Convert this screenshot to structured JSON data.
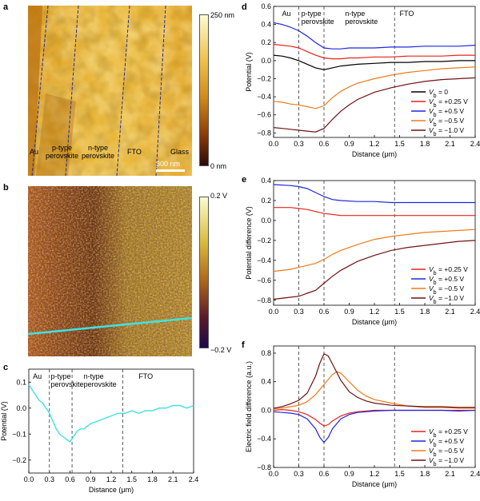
{
  "panels": {
    "a": {
      "letter": "a",
      "colorbar_max": "250 nm",
      "colorbar_min": "0 nm",
      "region_labels": [
        "Au",
        "p-type\nperovskite",
        "n-type\nperovskite",
        "FTO",
        "Glass"
      ],
      "scalebar": "300 nm"
    },
    "b": {
      "letter": "b",
      "colorbar_max": "0.2 V",
      "colorbar_min": "−0.2 V"
    },
    "c": {
      "letter": "c"
    },
    "d": {
      "letter": "d"
    },
    "e": {
      "letter": "e"
    },
    "f": {
      "letter": "f"
    }
  },
  "colors": {
    "cyan": "#3ee3e3",
    "black": "#000000",
    "red": "#e8231f",
    "blue": "#1f26e0",
    "orange": "#f07a1a",
    "darkred": "#6e1212"
  },
  "chart_data": [
    {
      "id": "c",
      "type": "line",
      "ylabel": "Potential (V)",
      "xlabel": "Distance (μm)",
      "xlim": [
        0,
        2.4
      ],
      "ylim": [
        -0.25,
        0.15
      ],
      "xticks": [
        0.0,
        0.3,
        0.6,
        0.9,
        1.2,
        1.5,
        1.8,
        2.1,
        2.4
      ],
      "xticklabels": [
        "0.0",
        "0.3",
        "0.6",
        "0.9",
        "1.2",
        "1.5",
        "1.8",
        "2.1",
        "2.4"
      ],
      "yticks": [
        0.1,
        0.0,
        -0.1,
        -0.2
      ],
      "yticklabels": [
        "0.1",
        "0.0",
        "−0.1",
        "−0.2"
      ],
      "vlines": [
        0.3,
        0.63,
        1.37
      ],
      "region_labels": [
        {
          "text": "Au",
          "x": 0.06
        },
        {
          "text": "p-type\nperovskite",
          "x": 0.32
        },
        {
          "text": "n-type\nperovskite",
          "x": 0.8
        },
        {
          "text": "FTO",
          "x": 1.6
        }
      ],
      "series": [
        {
          "color": "cyan",
          "x": [
            0,
            0.05,
            0.1,
            0.15,
            0.2,
            0.25,
            0.3,
            0.35,
            0.4,
            0.45,
            0.5,
            0.55,
            0.6,
            0.65,
            0.7,
            0.75,
            0.8,
            0.9,
            1.0,
            1.1,
            1.2,
            1.3,
            1.4,
            1.5,
            1.6,
            1.7,
            1.8,
            1.9,
            2.0,
            2.1,
            2.2,
            2.3,
            2.4
          ],
          "y": [
            0.09,
            0.07,
            0.05,
            0.03,
            0.02,
            0.0,
            -0.02,
            -0.05,
            -0.08,
            -0.1,
            -0.11,
            -0.12,
            -0.13,
            -0.11,
            -0.09,
            -0.08,
            -0.08,
            -0.06,
            -0.05,
            -0.04,
            -0.03,
            -0.02,
            -0.02,
            -0.01,
            -0.02,
            -0.01,
            -0.01,
            0.0,
            0.0,
            0.01,
            0.01,
            0.0,
            0.01
          ]
        }
      ]
    },
    {
      "id": "d",
      "type": "line",
      "ylabel": "Potential (V)",
      "xlabel": "Distance (μm)",
      "xlim": [
        0,
        2.4
      ],
      "ylim": [
        -0.85,
        0.6
      ],
      "xticks": [
        0.0,
        0.3,
        0.6,
        0.9,
        1.2,
        1.5,
        1.8,
        2.1,
        2.4
      ],
      "xticklabels": [
        "0.0",
        "0.3",
        "0.6",
        "0.9",
        "1.2",
        "1.5",
        "1.8",
        "2.1",
        "2.4"
      ],
      "yticks": [
        0.6,
        0.4,
        0.2,
        0.0,
        -0.2,
        -0.4,
        -0.6,
        -0.8
      ],
      "yticklabels": [
        "0.6",
        "0.4",
        "0.2",
        "0.0",
        "−0.2",
        "−0.4",
        "−0.6",
        "−0.8"
      ],
      "vlines": [
        0.3,
        0.6,
        1.44
      ],
      "region_labels": [
        {
          "text": "Au",
          "x": 0.1
        },
        {
          "text": "p-type\nperovskite",
          "x": 0.33
        },
        {
          "text": "n-type\nperovskite",
          "x": 0.85
        },
        {
          "text": "FTO",
          "x": 1.5
        }
      ],
      "legend_position": "bottom-right",
      "series": [
        {
          "name": "V_b = 0",
          "color": "black",
          "x": [
            0,
            0.1,
            0.2,
            0.3,
            0.4,
            0.5,
            0.6,
            0.7,
            0.8,
            0.9,
            1.0,
            1.2,
            1.4,
            1.6,
            1.8,
            2.0,
            2.2,
            2.4
          ],
          "y": [
            0.06,
            0.05,
            0.03,
            0.0,
            -0.04,
            -0.08,
            -0.1,
            -0.08,
            -0.06,
            -0.05,
            -0.04,
            -0.03,
            -0.02,
            -0.02,
            -0.01,
            -0.01,
            0.0,
            0.0
          ]
        },
        {
          "name": "V_b = +0.25 V",
          "color": "red",
          "x": [
            0,
            0.1,
            0.2,
            0.3,
            0.4,
            0.5,
            0.6,
            0.7,
            0.8,
            0.9,
            1.0,
            1.2,
            1.4,
            1.6,
            1.8,
            2.0,
            2.2,
            2.4
          ],
          "y": [
            0.18,
            0.17,
            0.16,
            0.14,
            0.1,
            0.06,
            0.03,
            0.02,
            0.02,
            0.03,
            0.03,
            0.04,
            0.04,
            0.05,
            0.05,
            0.05,
            0.06,
            0.06
          ]
        },
        {
          "name": "V_b = +0.5 V",
          "color": "blue",
          "x": [
            0,
            0.1,
            0.2,
            0.3,
            0.4,
            0.5,
            0.6,
            0.7,
            0.8,
            0.9,
            1.0,
            1.2,
            1.4,
            1.6,
            1.8,
            2.0,
            2.2,
            2.4
          ],
          "y": [
            0.42,
            0.4,
            0.37,
            0.33,
            0.27,
            0.2,
            0.14,
            0.13,
            0.13,
            0.14,
            0.14,
            0.14,
            0.15,
            0.15,
            0.16,
            0.16,
            0.16,
            0.17
          ]
        },
        {
          "name": "V_b = −0.5 V",
          "color": "orange",
          "x": [
            0,
            0.1,
            0.2,
            0.3,
            0.4,
            0.5,
            0.6,
            0.7,
            0.8,
            0.9,
            1.0,
            1.2,
            1.4,
            1.6,
            1.8,
            2.0,
            2.2,
            2.4
          ],
          "y": [
            -0.45,
            -0.46,
            -0.48,
            -0.49,
            -0.51,
            -0.53,
            -0.5,
            -0.41,
            -0.34,
            -0.29,
            -0.25,
            -0.2,
            -0.16,
            -0.13,
            -0.11,
            -0.09,
            -0.08,
            -0.07
          ]
        },
        {
          "name": "V_b = −1.0 V",
          "color": "darkred",
          "x": [
            0,
            0.1,
            0.2,
            0.3,
            0.4,
            0.5,
            0.6,
            0.7,
            0.8,
            0.9,
            1.0,
            1.2,
            1.4,
            1.6,
            1.8,
            2.0,
            2.2,
            2.4
          ],
          "y": [
            -0.74,
            -0.75,
            -0.76,
            -0.77,
            -0.78,
            -0.79,
            -0.75,
            -0.65,
            -0.56,
            -0.49,
            -0.43,
            -0.35,
            -0.3,
            -0.26,
            -0.23,
            -0.21,
            -0.2,
            -0.19
          ]
        }
      ]
    },
    {
      "id": "e",
      "type": "line",
      "ylabel": "Potential difference (V)",
      "xlabel": "Distance (μm)",
      "xlim": [
        0,
        2.4
      ],
      "ylim": [
        -0.85,
        0.4
      ],
      "xticks": [
        0.0,
        0.3,
        0.6,
        0.9,
        1.2,
        1.5,
        1.8,
        2.1,
        2.4
      ],
      "xticklabels": [
        "0.0",
        "0.3",
        "0.6",
        "0.9",
        "1.2",
        "1.5",
        "1.8",
        "2.1",
        "2.4"
      ],
      "yticks": [
        0.4,
        0.2,
        0.0,
        -0.2,
        -0.4,
        -0.6,
        -0.8
      ],
      "yticklabels": [
        "0.4",
        "0.2",
        "0.0",
        "−0.2",
        "−0.4",
        "−0.6",
        "−0.8"
      ],
      "vlines": [
        0.3,
        0.6,
        1.44
      ],
      "legend_position": "right",
      "series": [
        {
          "name": "V_b = +0.25 V",
          "color": "red",
          "x": [
            0,
            0.2,
            0.3,
            0.4,
            0.5,
            0.6,
            0.7,
            0.8,
            1.0,
            1.2,
            1.4,
            1.6,
            1.8,
            2.0,
            2.2,
            2.4
          ],
          "y": [
            0.13,
            0.13,
            0.12,
            0.11,
            0.09,
            0.07,
            0.06,
            0.05,
            0.05,
            0.05,
            0.05,
            0.05,
            0.05,
            0.05,
            0.05,
            0.05
          ]
        },
        {
          "name": "V_b = +0.5 V",
          "color": "blue",
          "x": [
            0,
            0.2,
            0.3,
            0.4,
            0.5,
            0.6,
            0.7,
            0.8,
            1.0,
            1.2,
            1.4,
            1.6,
            1.8,
            2.0,
            2.2,
            2.4
          ],
          "y": [
            0.36,
            0.35,
            0.34,
            0.32,
            0.28,
            0.24,
            0.21,
            0.2,
            0.19,
            0.19,
            0.18,
            0.18,
            0.18,
            0.18,
            0.18,
            0.18
          ]
        },
        {
          "name": "V_b = −0.5 V",
          "color": "orange",
          "x": [
            0,
            0.2,
            0.3,
            0.4,
            0.5,
            0.6,
            0.7,
            0.8,
            1.0,
            1.2,
            1.4,
            1.6,
            1.8,
            2.0,
            2.2,
            2.4
          ],
          "y": [
            -0.51,
            -0.49,
            -0.47,
            -0.45,
            -0.43,
            -0.39,
            -0.34,
            -0.3,
            -0.24,
            -0.19,
            -0.16,
            -0.14,
            -0.12,
            -0.11,
            -0.1,
            -0.09
          ]
        },
        {
          "name": "V_b = −1.0 V",
          "color": "darkred",
          "x": [
            0,
            0.2,
            0.3,
            0.4,
            0.5,
            0.6,
            0.7,
            0.8,
            1.0,
            1.2,
            1.4,
            1.6,
            1.8,
            2.0,
            2.2,
            2.4
          ],
          "y": [
            -0.79,
            -0.77,
            -0.76,
            -0.73,
            -0.7,
            -0.63,
            -0.56,
            -0.5,
            -0.41,
            -0.35,
            -0.3,
            -0.27,
            -0.25,
            -0.23,
            -0.21,
            -0.2
          ]
        }
      ]
    },
    {
      "id": "f",
      "type": "line",
      "ylabel": "Electric field difference (a.u.)",
      "xlabel": "Distance (μm)",
      "xlim": [
        0,
        2.4
      ],
      "ylim": [
        -0.8,
        0.9
      ],
      "xticks": [
        0.0,
        0.3,
        0.6,
        0.9,
        1.2,
        1.5,
        1.8,
        2.1,
        2.4
      ],
      "xticklabels": [
        "0.0",
        "0.3",
        "0.6",
        "0.9",
        "1.2",
        "1.5",
        "1.8",
        "2.1",
        "2.4"
      ],
      "yticks": [
        0.8,
        0.4,
        0.0,
        -0.4,
        -0.8
      ],
      "yticklabels": [
        "0.8",
        "0.4",
        "0.0",
        "−0.4",
        "−0.8"
      ],
      "vlines": [
        0.3,
        0.6,
        1.44
      ],
      "legend_position": "bottom-right",
      "series": [
        {
          "name": "V_b = +0.25 V",
          "color": "red",
          "x": [
            0,
            0.1,
            0.2,
            0.3,
            0.4,
            0.5,
            0.55,
            0.6,
            0.65,
            0.7,
            0.8,
            0.9,
            1.0,
            1.2,
            1.4,
            1.6,
            1.8,
            2.0,
            2.2,
            2.4
          ],
          "y": [
            0.0,
            0.01,
            0.0,
            -0.02,
            -0.06,
            -0.13,
            -0.18,
            -0.22,
            -0.2,
            -0.15,
            -0.08,
            -0.04,
            -0.02,
            0.0,
            0.0,
            0.0,
            0.0,
            0.0,
            0.0,
            0.0
          ]
        },
        {
          "name": "V_b = +0.5 V",
          "color": "blue",
          "x": [
            0,
            0.1,
            0.2,
            0.3,
            0.4,
            0.5,
            0.55,
            0.6,
            0.65,
            0.7,
            0.8,
            0.9,
            1.0,
            1.2,
            1.4,
            1.6,
            1.8,
            2.0,
            2.2,
            2.4
          ],
          "y": [
            -0.02,
            -0.03,
            -0.04,
            -0.06,
            -0.12,
            -0.26,
            -0.38,
            -0.45,
            -0.38,
            -0.26,
            -0.12,
            -0.06,
            -0.03,
            -0.01,
            0.0,
            0.0,
            0.0,
            0.0,
            -0.01,
            0.0
          ]
        },
        {
          "name": "V_b = −0.5 V",
          "color": "orange",
          "x": [
            0,
            0.1,
            0.2,
            0.3,
            0.4,
            0.5,
            0.6,
            0.7,
            0.75,
            0.8,
            0.9,
            1.0,
            1.1,
            1.2,
            1.4,
            1.6,
            1.8,
            2.0,
            2.2,
            2.4
          ],
          "y": [
            0.02,
            0.03,
            0.05,
            0.07,
            0.12,
            0.22,
            0.36,
            0.5,
            0.54,
            0.52,
            0.4,
            0.28,
            0.2,
            0.15,
            0.1,
            0.06,
            0.04,
            0.04,
            0.03,
            0.03
          ]
        },
        {
          "name": "V_b = −1.0 V",
          "color": "darkred",
          "x": [
            0,
            0.1,
            0.2,
            0.3,
            0.4,
            0.5,
            0.55,
            0.6,
            0.65,
            0.7,
            0.8,
            0.9,
            1.0,
            1.1,
            1.2,
            1.4,
            1.6,
            1.8,
            2.0,
            2.2,
            2.4
          ],
          "y": [
            0.03,
            0.05,
            0.09,
            0.14,
            0.24,
            0.48,
            0.66,
            0.79,
            0.76,
            0.65,
            0.42,
            0.26,
            0.18,
            0.13,
            0.1,
            0.07,
            0.06,
            0.05,
            0.05,
            0.04,
            0.04
          ]
        }
      ]
    }
  ]
}
